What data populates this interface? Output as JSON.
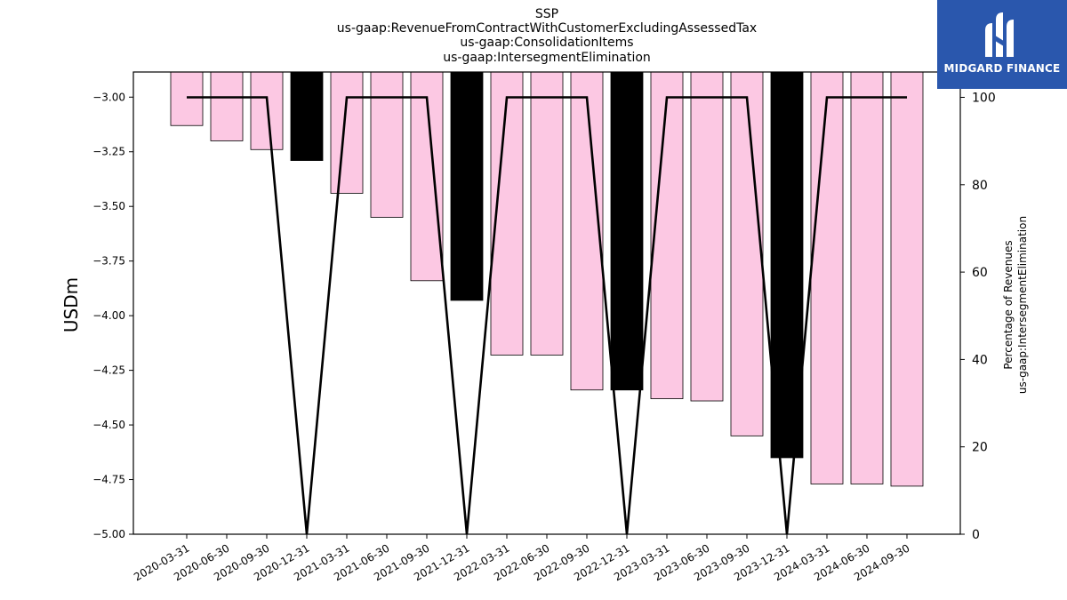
{
  "chart_data": {
    "type": "bar",
    "title_lines": [
      "SSP",
      "us-gaap:RevenueFromContractWithCustomerExcludingAssessedTax",
      "us-gaap:ConsolidationItems",
      "us-gaap:IntersegmentElimination"
    ],
    "ylabel": "USDm",
    "y2label_lines": [
      "Percentage of Revenues",
      "us-gaap:IntersegmentElimination"
    ],
    "ylim": [
      -5.0,
      -2.885
    ],
    "y2lim": [
      0,
      105.8
    ],
    "yticks": [
      "−3.00",
      "−3.25",
      "−3.50",
      "−3.75",
      "−4.00",
      "−4.25",
      "−4.50",
      "−4.75",
      "−5.00"
    ],
    "ytick_values": [
      -3.0,
      -3.25,
      -3.5,
      -3.75,
      -4.0,
      -4.25,
      -4.5,
      -4.75,
      -5.0
    ],
    "y2ticks": [
      "0",
      "20",
      "40",
      "60",
      "80",
      "100"
    ],
    "y2tick_values": [
      0,
      20,
      40,
      60,
      80,
      100
    ],
    "categories": [
      "2020-03-31",
      "2020-06-30",
      "2020-09-30",
      "2020-12-31",
      "2021-03-31",
      "2021-06-30",
      "2021-09-30",
      "2021-12-31",
      "2022-03-31",
      "2022-06-30",
      "2022-09-30",
      "2022-12-31",
      "2023-03-31",
      "2023-06-30",
      "2023-09-30",
      "2023-12-31",
      "2024-03-31",
      "2024-06-30",
      "2024-09-30"
    ],
    "series": [
      {
        "type": "bar",
        "values": [
          -3.13,
          -3.2,
          -3.24,
          -3.29,
          -3.44,
          -3.55,
          -3.84,
          -3.93,
          -4.18,
          -4.18,
          -4.34,
          -4.34,
          -4.38,
          -4.39,
          -4.55,
          -4.65,
          -4.77,
          -4.77,
          -4.78
        ],
        "colors": [
          "#fcc8e3",
          "#fcc8e3",
          "#fcc8e3",
          "#000000",
          "#fcc8e3",
          "#fcc8e3",
          "#fcc8e3",
          "#000000",
          "#fcc8e3",
          "#fcc8e3",
          "#fcc8e3",
          "#000000",
          "#fcc8e3",
          "#fcc8e3",
          "#fcc8e3",
          "#000000",
          "#fcc8e3",
          "#fcc8e3",
          "#fcc8e3"
        ]
      },
      {
        "type": "line",
        "axis": "right",
        "values": [
          100,
          100,
          100,
          0,
          100,
          100,
          100,
          0,
          100,
          100,
          100,
          0,
          100,
          100,
          100,
          0,
          100,
          100,
          100
        ],
        "color": "#000000"
      }
    ],
    "grid": false,
    "legend": "none"
  },
  "logo": {
    "text": "MIDGARD FINANCE",
    "background": "#2a57ad"
  }
}
